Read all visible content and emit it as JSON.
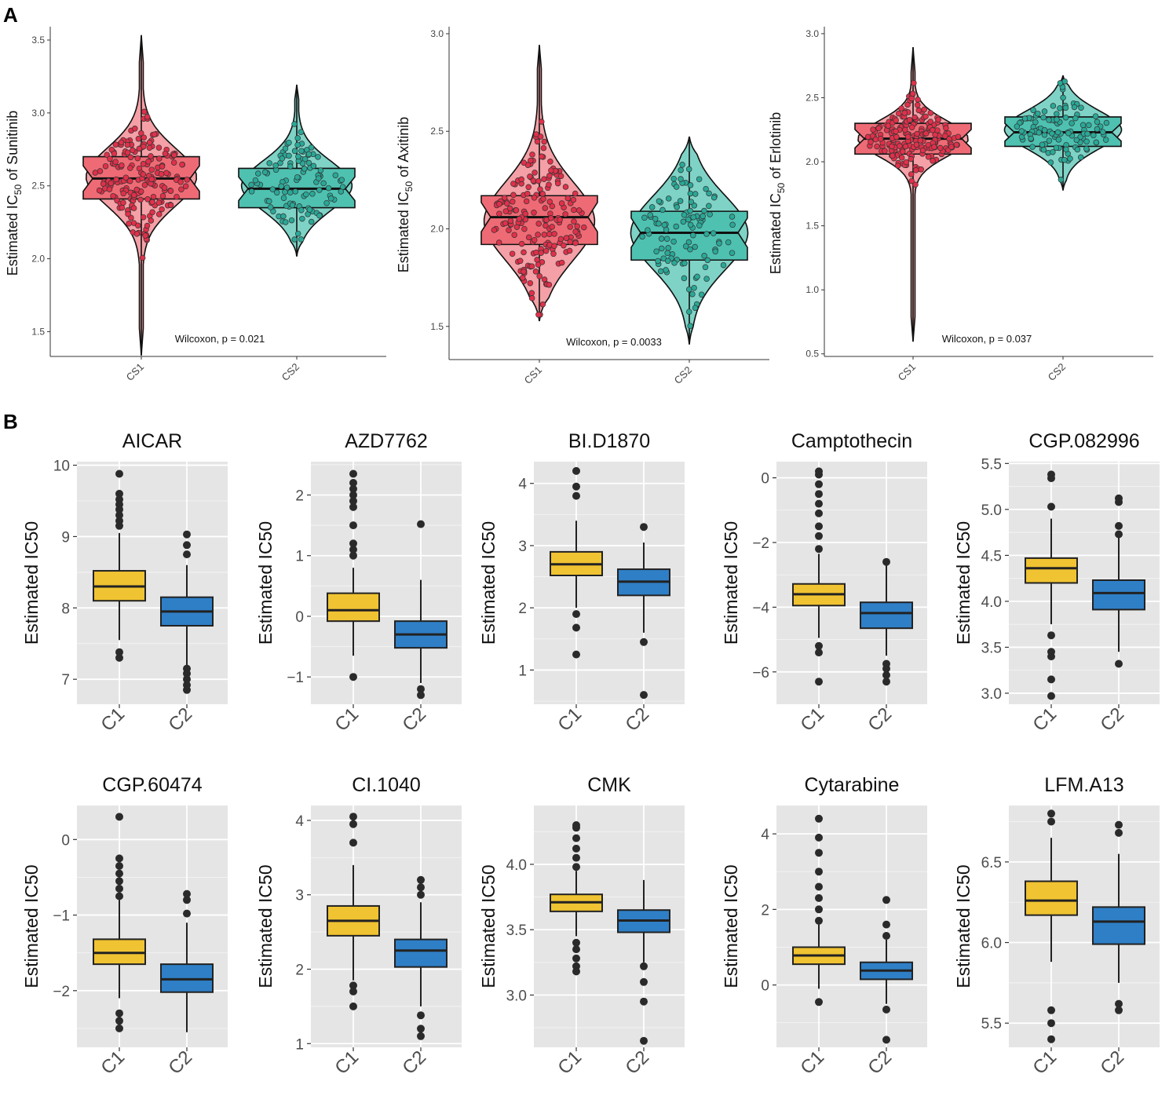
{
  "panels": {
    "a_label": "A",
    "b_label": "B"
  },
  "colors": {
    "cs1_fill": "#f4a0a6",
    "cs1_box": "#ee6b75",
    "cs1_point": "#e0304a",
    "cs2_fill": "#7fd3c6",
    "cs2_box": "#4fc1b1",
    "cs2_point": "#2aa897",
    "c1_box": "#f0c332",
    "c2_box": "#2f7fc6",
    "panel_bg": "#e5e5e5"
  },
  "chart_data": [
    {
      "id": "sunitinib",
      "type": "violin",
      "panel": "A",
      "ylabel_prefix": "Estimated IC",
      "ylabel_sub": "50",
      "ylabel_suffix": " of Sunitinib",
      "categories": [
        "CS1",
        "CS2"
      ],
      "ylim": [
        1.33,
        3.57
      ],
      "ticks": [
        1.5,
        2.0,
        2.5,
        3.0,
        3.5
      ],
      "tick_labels": [
        "1.5",
        "2.0",
        "2.5",
        "3.0",
        "3.5"
      ],
      "annotation": "Wilcoxon, p = 0.021",
      "groups": [
        {
          "name": "CS1",
          "q1": 2.41,
          "median": 2.55,
          "q3": 2.7,
          "min": 1.34,
          "max": 3.53,
          "mode": 2.56,
          "spread": 0.2,
          "half_width": 0.8
        },
        {
          "name": "CS2",
          "q1": 2.35,
          "median": 2.48,
          "q3": 2.62,
          "min": 2.02,
          "max": 3.19,
          "mode": 2.5,
          "spread": 0.17,
          "half_width": 0.8
        }
      ]
    },
    {
      "id": "axitinib",
      "type": "violin",
      "panel": "A",
      "ylabel_prefix": "Estimated IC",
      "ylabel_sub": "50",
      "ylabel_suffix": " of Axitinib",
      "categories": [
        "CS1",
        "CS2"
      ],
      "ylim": [
        1.33,
        3.02
      ],
      "ticks": [
        1.5,
        2.0,
        2.5,
        3.0
      ],
      "tick_labels": [
        "1.5",
        "2.0",
        "2.5",
        "3.0"
      ],
      "annotation": "Wilcoxon, p = 0.0033",
      "groups": [
        {
          "name": "CS1",
          "q1": 1.92,
          "median": 2.06,
          "q3": 2.17,
          "min": 1.53,
          "max": 2.94,
          "mode": 2.04,
          "spread": 0.2,
          "half_width": 0.8
        },
        {
          "name": "CS2",
          "q1": 1.84,
          "median": 1.98,
          "q3": 2.09,
          "min": 1.41,
          "max": 2.47,
          "mode": 1.98,
          "spread": 0.19,
          "half_width": 0.85
        }
      ]
    },
    {
      "id": "erlotinib",
      "type": "violin",
      "panel": "A",
      "ylabel_prefix": "Estimated IC",
      "ylabel_sub": "50",
      "ylabel_suffix": " of Erlotinib",
      "categories": [
        "CS1",
        "CS2"
      ],
      "ylim": [
        0.48,
        3.03
      ],
      "ticks": [
        0.5,
        1.0,
        1.5,
        2.0,
        2.5,
        3.0
      ],
      "tick_labels": [
        "0.5",
        "1.0",
        "1.5",
        "2.0",
        "2.5",
        "3.0"
      ],
      "annotation": "Wilcoxon, p = 0.037",
      "groups": [
        {
          "name": "CS1",
          "q1": 2.06,
          "median": 2.18,
          "q3": 2.3,
          "min": 0.6,
          "max": 2.89,
          "mode": 2.18,
          "spread": 0.14,
          "half_width": 0.8
        },
        {
          "name": "CS2",
          "q1": 2.12,
          "median": 2.23,
          "q3": 2.35,
          "min": 1.78,
          "max": 2.67,
          "mode": 2.25,
          "spread": 0.15,
          "half_width": 0.85
        }
      ]
    },
    {
      "id": "aicar",
      "type": "box",
      "panel": "B",
      "title": "AICAR",
      "ylabel": "Estimated IC50",
      "categories": [
        "C1",
        "C2"
      ],
      "ylim": [
        6.65,
        10.05
      ],
      "ticks": [
        7,
        8,
        9,
        10
      ],
      "tick_labels": [
        "7",
        "8",
        "9",
        "10"
      ],
      "groups": [
        {
          "name": "C1",
          "q1": 8.1,
          "median": 8.3,
          "q3": 8.52,
          "whisker_low": 7.55,
          "whisker_high": 9.05,
          "outliers": [
            7.3,
            7.38,
            9.15,
            9.22,
            9.3,
            9.38,
            9.45,
            9.52,
            9.6,
            9.88
          ]
        },
        {
          "name": "C2",
          "q1": 7.75,
          "median": 7.95,
          "q3": 8.15,
          "whisker_low": 7.2,
          "whisker_high": 8.6,
          "outliers": [
            6.85,
            6.92,
            7.0,
            7.08,
            7.15,
            8.75,
            8.88,
            9.03
          ]
        }
      ]
    },
    {
      "id": "azd7762",
      "type": "box",
      "panel": "B",
      "title": "AZD7762",
      "ylabel": "Estimated IC50",
      "categories": [
        "C1",
        "C2"
      ],
      "ylim": [
        -1.45,
        2.55
      ],
      "ticks": [
        -1,
        0,
        1,
        2
      ],
      "tick_labels": [
        "−1",
        "0",
        "1",
        "2"
      ],
      "groups": [
        {
          "name": "C1",
          "q1": -0.08,
          "median": 0.1,
          "q3": 0.38,
          "whisker_low": -0.65,
          "whisker_high": 0.8,
          "outliers": [
            -1.0,
            1.0,
            1.1,
            1.2,
            1.5,
            1.8,
            1.9,
            2.0,
            2.1,
            2.2,
            2.35
          ]
        },
        {
          "name": "C2",
          "q1": -0.52,
          "median": -0.3,
          "q3": -0.08,
          "whisker_low": -1.1,
          "whisker_high": 0.6,
          "outliers": [
            -1.2,
            -1.3,
            1.52
          ]
        }
      ]
    },
    {
      "id": "bid1870",
      "type": "box",
      "panel": "B",
      "title": "BI.D1870",
      "ylabel": "Estimated IC50",
      "categories": [
        "C1",
        "C2"
      ],
      "ylim": [
        0.45,
        4.35
      ],
      "ticks": [
        1,
        2,
        3,
        4
      ],
      "tick_labels": [
        "1",
        "2",
        "3",
        "4"
      ],
      "groups": [
        {
          "name": "C1",
          "q1": 2.52,
          "median": 2.7,
          "q3": 2.9,
          "whisker_low": 2.0,
          "whisker_high": 3.4,
          "outliers": [
            1.25,
            1.68,
            1.9,
            3.8,
            3.95,
            4.2
          ]
        },
        {
          "name": "C2",
          "q1": 2.2,
          "median": 2.42,
          "q3": 2.62,
          "whisker_low": 1.6,
          "whisker_high": 3.05,
          "outliers": [
            0.6,
            1.45,
            3.3
          ]
        }
      ]
    },
    {
      "id": "camptothecin",
      "type": "box",
      "panel": "B",
      "title": "Camptothecin",
      "ylabel": "Estimated IC50",
      "categories": [
        "C1",
        "C2"
      ],
      "ylim": [
        -7.0,
        0.5
      ],
      "ticks": [
        -6,
        -4,
        -2,
        0
      ],
      "tick_labels": [
        "−6",
        "−4",
        "−2",
        "0"
      ],
      "groups": [
        {
          "name": "C1",
          "q1": -3.95,
          "median": -3.6,
          "q3": -3.28,
          "whisker_low": -4.95,
          "whisker_high": -2.35,
          "outliers": [
            -6.3,
            -5.4,
            -5.2,
            -2.2,
            -1.8,
            -1.5,
            -1.1,
            -0.8,
            -0.5,
            -0.2,
            0.1,
            0.2
          ]
        },
        {
          "name": "C2",
          "q1": -4.65,
          "median": -4.18,
          "q3": -3.85,
          "whisker_low": -5.5,
          "whisker_high": -2.7,
          "outliers": [
            -6.3,
            -6.1,
            -5.9,
            -5.75,
            -2.6
          ]
        }
      ]
    },
    {
      "id": "cgp082996",
      "type": "box",
      "panel": "B",
      "title": "CGP.082996",
      "ylabel": "Estimated IC50",
      "categories": [
        "C1",
        "C2"
      ],
      "ylim": [
        2.88,
        5.52
      ],
      "ticks": [
        3.0,
        3.5,
        4.0,
        4.5,
        5.0,
        5.5
      ],
      "tick_labels": [
        "3.0",
        "3.5",
        "4.0",
        "4.5",
        "5.0",
        "5.5"
      ],
      "groups": [
        {
          "name": "C1",
          "q1": 4.2,
          "median": 4.36,
          "q3": 4.47,
          "whisker_low": 3.75,
          "whisker_high": 4.9,
          "outliers": [
            2.97,
            3.15,
            3.4,
            3.45,
            3.63,
            5.03,
            5.34,
            5.38
          ]
        },
        {
          "name": "C2",
          "q1": 3.91,
          "median": 4.09,
          "q3": 4.23,
          "whisker_low": 3.45,
          "whisker_high": 4.7,
          "outliers": [
            3.32,
            4.73,
            4.82,
            5.08,
            5.12
          ]
        }
      ]
    },
    {
      "id": "cgp60474",
      "type": "box",
      "panel": "B",
      "title": "CGP.60474",
      "ylabel": "Estimated IC50",
      "categories": [
        "C1",
        "C2"
      ],
      "ylim": [
        -2.75,
        0.45
      ],
      "ticks": [
        -2,
        -1,
        0
      ],
      "tick_labels": [
        "−2",
        "−1",
        "0"
      ],
      "groups": [
        {
          "name": "C1",
          "q1": -1.65,
          "median": -1.5,
          "q3": -1.32,
          "whisker_low": -2.1,
          "whisker_high": -0.8,
          "outliers": [
            -2.5,
            -2.4,
            -2.3,
            -0.75,
            -0.65,
            -0.55,
            -0.45,
            -0.35,
            -0.25,
            0.3
          ]
        },
        {
          "name": "C2",
          "q1": -2.02,
          "median": -1.85,
          "q3": -1.65,
          "whisker_low": -2.55,
          "whisker_high": -1.1,
          "outliers": [
            -0.98,
            -0.8,
            -0.72
          ]
        }
      ]
    },
    {
      "id": "ci1040",
      "type": "box",
      "panel": "B",
      "title": "CI.1040",
      "ylabel": "Estimated IC50",
      "categories": [
        "C1",
        "C2"
      ],
      "ylim": [
        0.95,
        4.2
      ],
      "ticks": [
        1,
        2,
        3,
        4
      ],
      "tick_labels": [
        "1",
        "2",
        "3",
        "4"
      ],
      "groups": [
        {
          "name": "C1",
          "q1": 2.45,
          "median": 2.65,
          "q3": 2.85,
          "whisker_low": 1.85,
          "whisker_high": 3.4,
          "outliers": [
            1.5,
            1.7,
            1.78,
            3.7,
            3.95,
            4.05
          ]
        },
        {
          "name": "C2",
          "q1": 2.03,
          "median": 2.25,
          "q3": 2.4,
          "whisker_low": 1.5,
          "whisker_high": 2.9,
          "outliers": [
            1.1,
            1.2,
            1.38,
            3.0,
            3.1,
            3.2
          ]
        }
      ]
    },
    {
      "id": "cmk",
      "type": "box",
      "panel": "B",
      "title": "CMK",
      "ylabel": "Estimated IC50",
      "categories": [
        "C1",
        "C2"
      ],
      "ylim": [
        2.6,
        4.45
      ],
      "ticks": [
        3.0,
        3.5,
        4.0
      ],
      "tick_labels": [
        "3.0",
        "3.5",
        "4.0"
      ],
      "groups": [
        {
          "name": "C1",
          "q1": 3.64,
          "median": 3.71,
          "q3": 3.77,
          "whisker_low": 3.45,
          "whisker_high": 3.95,
          "outliers": [
            3.18,
            3.22,
            3.28,
            3.35,
            3.4,
            3.98,
            4.05,
            4.12,
            4.2,
            4.28,
            4.3
          ]
        },
        {
          "name": "C2",
          "q1": 3.48,
          "median": 3.57,
          "q3": 3.65,
          "whisker_low": 3.25,
          "whisker_high": 3.88,
          "outliers": [
            2.65,
            2.95,
            3.1,
            3.22
          ]
        }
      ]
    },
    {
      "id": "cytarabine",
      "type": "box",
      "panel": "B",
      "title": "Cytarabine",
      "ylabel": "Estimated IC50",
      "categories": [
        "C1",
        "C2"
      ],
      "ylim": [
        -1.65,
        4.75
      ],
      "ticks": [
        0,
        2,
        4
      ],
      "tick_labels": [
        "0",
        "2",
        "4"
      ],
      "groups": [
        {
          "name": "C1",
          "q1": 0.55,
          "median": 0.78,
          "q3": 1.0,
          "whisker_low": -0.1,
          "whisker_high": 1.6,
          "outliers": [
            -0.45,
            1.7,
            2.0,
            2.3,
            2.6,
            3.0,
            3.5,
            3.9,
            4.4
          ]
        },
        {
          "name": "C2",
          "q1": 0.15,
          "median": 0.38,
          "q3": 0.6,
          "whisker_low": -0.5,
          "whisker_high": 1.2,
          "outliers": [
            -1.45,
            -0.65,
            1.3,
            1.6,
            2.25
          ]
        }
      ]
    },
    {
      "id": "lfma13",
      "type": "box",
      "panel": "B",
      "title": "LFM.A13",
      "ylabel": "Estimated IC50",
      "categories": [
        "C1",
        "C2"
      ],
      "ylim": [
        5.35,
        6.85
      ],
      "ticks": [
        5.5,
        6.0,
        6.5
      ],
      "tick_labels": [
        "5.5",
        "6.0",
        "6.5"
      ],
      "groups": [
        {
          "name": "C1",
          "q1": 6.17,
          "median": 6.26,
          "q3": 6.38,
          "whisker_low": 5.88,
          "whisker_high": 6.65,
          "outliers": [
            5.4,
            5.5,
            5.58,
            6.75,
            6.8
          ]
        },
        {
          "name": "C2",
          "q1": 5.99,
          "median": 6.13,
          "q3": 6.22,
          "whisker_low": 5.75,
          "whisker_high": 6.55,
          "outliers": [
            5.58,
            5.62,
            6.68,
            6.73
          ]
        }
      ]
    }
  ]
}
